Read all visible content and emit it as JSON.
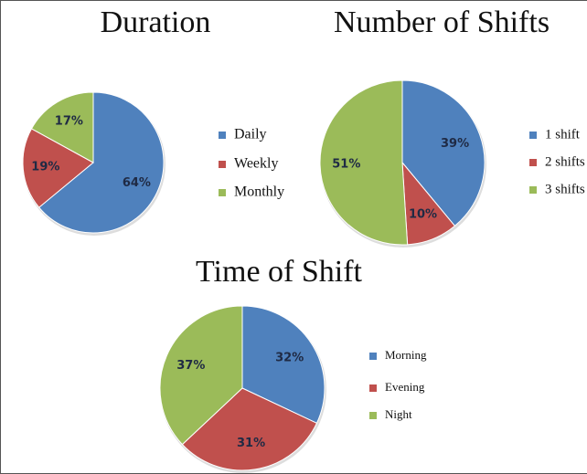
{
  "chart_data": [
    {
      "type": "pie",
      "title": "Duration",
      "categories": [
        "Daily",
        "Weekly",
        "Monthly"
      ],
      "values": [
        64,
        19,
        17
      ],
      "value_labels": [
        "64%",
        "19%",
        "17%"
      ],
      "colors": [
        "#4f81bd",
        "#c0504d",
        "#9bbb59"
      ]
    },
    {
      "type": "pie",
      "title": "Number of Shifts",
      "categories": [
        "1 shift",
        "2 shifts",
        "3 shifts"
      ],
      "values": [
        39,
        10,
        51
      ],
      "value_labels": [
        "39%",
        "10%",
        "51%"
      ],
      "colors": [
        "#4f81bd",
        "#c0504d",
        "#9bbb59"
      ]
    },
    {
      "type": "pie",
      "title": "Time of Shift",
      "categories": [
        "Morning",
        "Evening",
        "Night"
      ],
      "values": [
        32,
        31,
        37
      ],
      "value_labels": [
        "32%",
        "31%",
        "37%"
      ],
      "colors": [
        "#4f81bd",
        "#c0504d",
        "#9bbb59"
      ]
    }
  ]
}
